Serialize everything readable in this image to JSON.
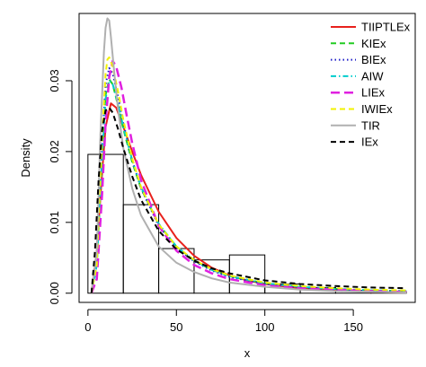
{
  "chart_data": {
    "type": "histogram-with-density-curves",
    "xlabel": "x",
    "ylabel": "Density",
    "xlim": [
      -5,
      185
    ],
    "ylim": [
      -0.0013,
      0.0395
    ],
    "x_ticks": [
      0,
      50,
      100,
      150
    ],
    "y_ticks": [
      0.0,
      0.01,
      0.02,
      0.03
    ],
    "x_tick_labels": [
      "0",
      "50",
      "100",
      "150"
    ],
    "y_tick_labels": [
      "0.00",
      "0.01",
      "0.02",
      "0.03"
    ],
    "grid": false,
    "legend_position": "top-right",
    "histogram": {
      "bins": [
        {
          "x0": 0,
          "x1": 20,
          "density": 0.0196
        },
        {
          "x0": 20,
          "x1": 40,
          "density": 0.0125
        },
        {
          "x0": 40,
          "x1": 60,
          "density": 0.0063
        },
        {
          "x0": 60,
          "x1": 80,
          "density": 0.0047
        },
        {
          "x0": 80,
          "x1": 100,
          "density": 0.0054
        },
        {
          "x0": 100,
          "x1": 120,
          "density": 0.0013
        },
        {
          "x0": 120,
          "x1": 140,
          "density": 0.0008
        },
        {
          "x0": 140,
          "x1": 160,
          "density": 0.0003
        },
        {
          "x0": 160,
          "x1": 180,
          "density": 0.0002
        }
      ]
    },
    "series": [
      {
        "name": "TIIPTLEx",
        "color": "#e8201c",
        "dash": "solid",
        "width": 2,
        "x": [
          2,
          5,
          8,
          10,
          13,
          16,
          20,
          25,
          30,
          40,
          50,
          60,
          70,
          80,
          90,
          100,
          120,
          140,
          160,
          180
        ],
        "y": [
          0.0,
          0.006,
          0.017,
          0.0235,
          0.0268,
          0.0262,
          0.0235,
          0.02,
          0.0167,
          0.0115,
          0.0078,
          0.0053,
          0.0036,
          0.0025,
          0.0018,
          0.0013,
          0.0007,
          0.0004,
          0.0002,
          0.0001
        ]
      },
      {
        "name": "KIEx",
        "color": "#22cc22",
        "dash": "6,4",
        "width": 2,
        "x": [
          2,
          5,
          8,
          10,
          12,
          14,
          17,
          20,
          25,
          30,
          40,
          50,
          60,
          70,
          80,
          100,
          120,
          140,
          160,
          180
        ],
        "y": [
          0.0,
          0.004,
          0.02,
          0.028,
          0.0302,
          0.0295,
          0.0265,
          0.0232,
          0.0185,
          0.0148,
          0.0097,
          0.0066,
          0.0046,
          0.0033,
          0.0024,
          0.0014,
          0.0009,
          0.0006,
          0.0004,
          0.0003
        ]
      },
      {
        "name": "BIEx",
        "color": "#1c1cc8",
        "dash": "1.5,3",
        "width": 2,
        "x": [
          2,
          5,
          8,
          10,
          12,
          14,
          17,
          20,
          25,
          30,
          40,
          50,
          60,
          70,
          80,
          100,
          120,
          140,
          160,
          180
        ],
        "y": [
          0.0,
          0.004,
          0.021,
          0.0295,
          0.0318,
          0.031,
          0.0278,
          0.024,
          0.0188,
          0.0148,
          0.0095,
          0.0064,
          0.0045,
          0.0032,
          0.0023,
          0.0013,
          0.0008,
          0.0005,
          0.0003,
          0.0002
        ]
      },
      {
        "name": "AIW",
        "color": "#00cccc",
        "dash": "6,3,1.5,3",
        "width": 2,
        "x": [
          2,
          5,
          8,
          10,
          12,
          14,
          17,
          20,
          25,
          30,
          40,
          50,
          60,
          70,
          80,
          100,
          120,
          140,
          160,
          180
        ],
        "y": [
          0.0,
          0.004,
          0.019,
          0.0275,
          0.03,
          0.0295,
          0.0268,
          0.0235,
          0.0188,
          0.015,
          0.0098,
          0.0066,
          0.0046,
          0.0033,
          0.0024,
          0.0014,
          0.0009,
          0.0006,
          0.0004,
          0.0003
        ]
      },
      {
        "name": "LIEx",
        "color": "#e020e0",
        "dash": "10,5",
        "width": 2.5,
        "x": [
          2,
          5,
          8,
          10,
          12,
          14,
          16,
          19,
          22,
          25,
          30,
          40,
          50,
          60,
          70,
          80,
          100,
          120,
          140,
          160,
          180
        ],
        "y": [
          0.0,
          0.002,
          0.014,
          0.024,
          0.0305,
          0.0328,
          0.032,
          0.029,
          0.025,
          0.0212,
          0.016,
          0.0095,
          0.006,
          0.004,
          0.0028,
          0.002,
          0.0011,
          0.0007,
          0.0005,
          0.0003,
          0.0002
        ]
      },
      {
        "name": "IWIEx",
        "color": "#f2f200",
        "dash": "6,4",
        "width": 2,
        "x": [
          2,
          5,
          8,
          10,
          11,
          12,
          14,
          17,
          20,
          25,
          30,
          40,
          50,
          60,
          70,
          80,
          100,
          120,
          140,
          160,
          180
        ],
        "y": [
          0.0,
          0.004,
          0.022,
          0.031,
          0.033,
          0.0333,
          0.032,
          0.0285,
          0.0245,
          0.019,
          0.015,
          0.0097,
          0.0066,
          0.0047,
          0.0034,
          0.0025,
          0.0015,
          0.001,
          0.0007,
          0.0005,
          0.0004
        ]
      },
      {
        "name": "TIR",
        "color": "#b0b0b0",
        "dash": "solid",
        "width": 2,
        "x": [
          2,
          5,
          7,
          9,
          10,
          11,
          12,
          13,
          15,
          17,
          20,
          25,
          30,
          40,
          50,
          60,
          70,
          80,
          100,
          120,
          140,
          160,
          180
        ],
        "y": [
          0.0,
          0.006,
          0.022,
          0.034,
          0.0375,
          0.0388,
          0.0385,
          0.0362,
          0.0308,
          0.026,
          0.0205,
          0.0148,
          0.011,
          0.0066,
          0.0043,
          0.003,
          0.0021,
          0.0015,
          0.0009,
          0.0005,
          0.0003,
          0.0002,
          0.0001
        ]
      },
      {
        "name": "IEx",
        "color": "#000000",
        "dash": "6,4",
        "width": 2,
        "x": [
          2,
          4,
          6,
          8,
          10,
          12,
          14,
          17,
          20,
          25,
          30,
          40,
          50,
          60,
          70,
          80,
          100,
          120,
          140,
          160,
          180
        ],
        "y": [
          0.0,
          0.006,
          0.016,
          0.023,
          0.0258,
          0.0262,
          0.0255,
          0.0232,
          0.0205,
          0.0165,
          0.0132,
          0.0088,
          0.0062,
          0.0046,
          0.0035,
          0.0028,
          0.0018,
          0.0013,
          0.001,
          0.0008,
          0.0007
        ]
      }
    ]
  }
}
